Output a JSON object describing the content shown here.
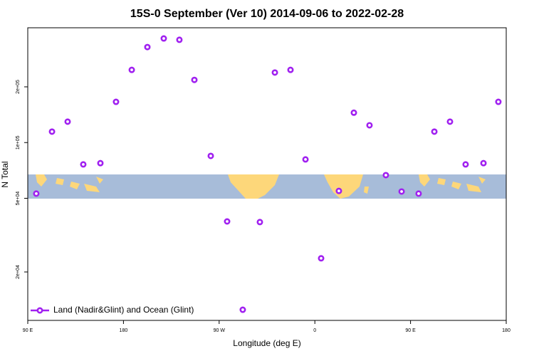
{
  "chart_data": {
    "type": "scatter",
    "title": "15S-0 September (Ver 10)   2014-09-06 to 2022-02-28",
    "x_label": "Longitude (deg E)",
    "y_label": "N Total",
    "yscale": "log",
    "color": "#a020f0",
    "legend_position": "bottom-left",
    "series": [
      {
        "name": "Land (Nadir&Glint) and Ocean (Glint)",
        "color": "#a020f0",
        "x": [
          98.0,
          112.8,
          127.5,
          142.2,
          158.3,
          173.0,
          187.8,
          202.5,
          217.9,
          232.6,
          246.7,
          262.1,
          277.5,
          292.2,
          308.3,
          322.4,
          337.1,
          351.2,
          365.9,
          382.6,
          396.7,
          411.4,
          426.8,
          441.6,
          457.6,
          472.4,
          487.1,
          501.8,
          518.6,
          532.6
        ],
        "values": [
          53000,
          114600,
          129700,
          76200,
          77400,
          166000,
          247000,
          328000,
          365000,
          359000,
          218000,
          84700,
          37500,
          12500,
          37200,
          239000,
          247000,
          81100,
          23700,
          54800,
          145000,
          124000,
          66700,
          54400,
          53000,
          114600,
          129700,
          76200,
          77400,
          166000
        ]
      }
    ],
    "xlim": [
      90,
      540
    ],
    "xticks": [
      {
        "value": 90,
        "label": "90 E"
      },
      {
        "value": 180,
        "label": "180"
      },
      {
        "value": 270,
        "label": "90 W"
      },
      {
        "value": 360,
        "label": "0"
      },
      {
        "value": 450,
        "label": "90 E"
      },
      {
        "value": 540,
        "label": "180"
      }
    ],
    "ylim": [
      10950,
      417000
    ],
    "yticks": [
      {
        "value": 20000,
        "label": "2e+04"
      },
      {
        "value": 50000,
        "label": "5e+04"
      },
      {
        "value": 100000,
        "label": "1e+05"
      },
      {
        "value": 200000,
        "label": "2e+05"
      }
    ]
  }
}
